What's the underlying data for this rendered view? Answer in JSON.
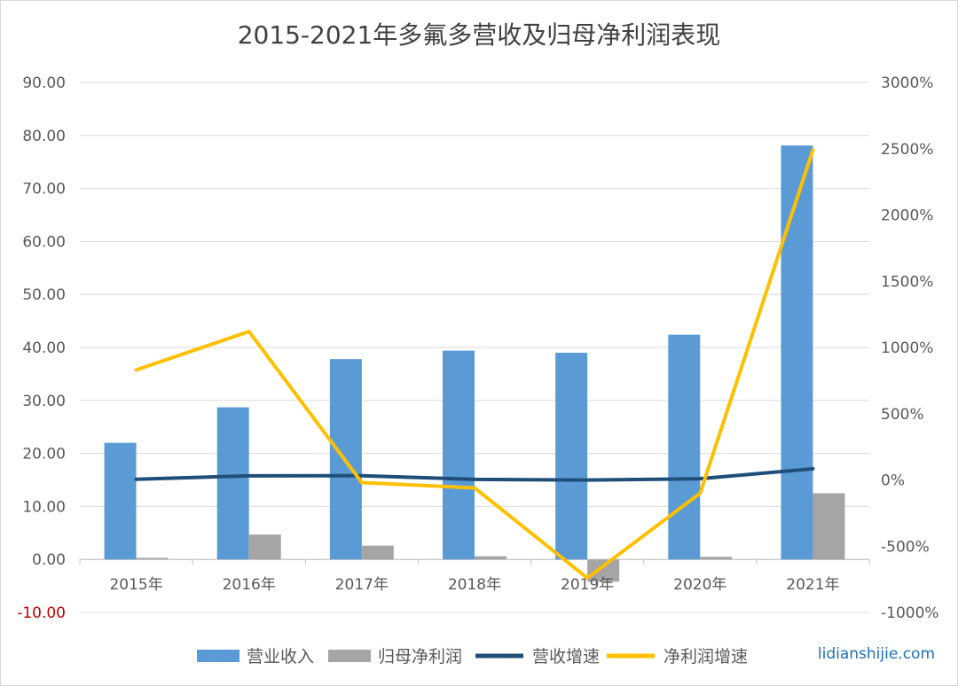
{
  "title": "2015-2021年多氟多营收及归母净利润表现",
  "watermark": "lidianshijie.com",
  "colors": {
    "revenue": "#5b9bd5",
    "profit": "#a5a5a5",
    "revenue_growth": "#1f4e79",
    "profit_growth": "#ffc000",
    "grid": "#d9d9d9",
    "axis_text": "#595959",
    "negative_tick": "#c00000"
  },
  "chart_data": {
    "type": "bar",
    "title": "2015-2021年多氟多营收及归母净利润表现",
    "categories": [
      "2015年",
      "2016年",
      "2017年",
      "2018年",
      "2019年",
      "2020年",
      "2021年"
    ],
    "y_left": {
      "min": -10,
      "max": 90,
      "step": 10,
      "ticks": [
        "-10.00",
        "0.00",
        "10.00",
        "20.00",
        "30.00",
        "40.00",
        "50.00",
        "60.00",
        "70.00",
        "80.00",
        "90.00"
      ]
    },
    "y_right": {
      "min": -1000,
      "max": 3000,
      "step": 500,
      "ticks": [
        "-1000%",
        "-500%",
        "0%",
        "500%",
        "1000%",
        "1500%",
        "2000%",
        "2500%",
        "3000%"
      ]
    },
    "grid": true,
    "legend_position": "bottom",
    "series": [
      {
        "name": "营业收入",
        "type": "bar",
        "axis": "left",
        "values": [
          22.0,
          28.7,
          37.8,
          39.4,
          39.0,
          42.4,
          78.1
        ]
      },
      {
        "name": "归母净利润",
        "type": "bar",
        "axis": "left",
        "values": [
          0.3,
          4.7,
          2.6,
          0.6,
          -4.2,
          0.5,
          12.5
        ]
      },
      {
        "name": "营收增速",
        "type": "line",
        "axis": "right",
        "values": [
          5,
          31,
          32,
          4,
          -1,
          9,
          84
        ]
      },
      {
        "name": "净利润增速",
        "type": "line",
        "axis": "right",
        "values": [
          830,
          1120,
          -20,
          -60,
          -740,
          -100,
          2490
        ]
      }
    ]
  }
}
